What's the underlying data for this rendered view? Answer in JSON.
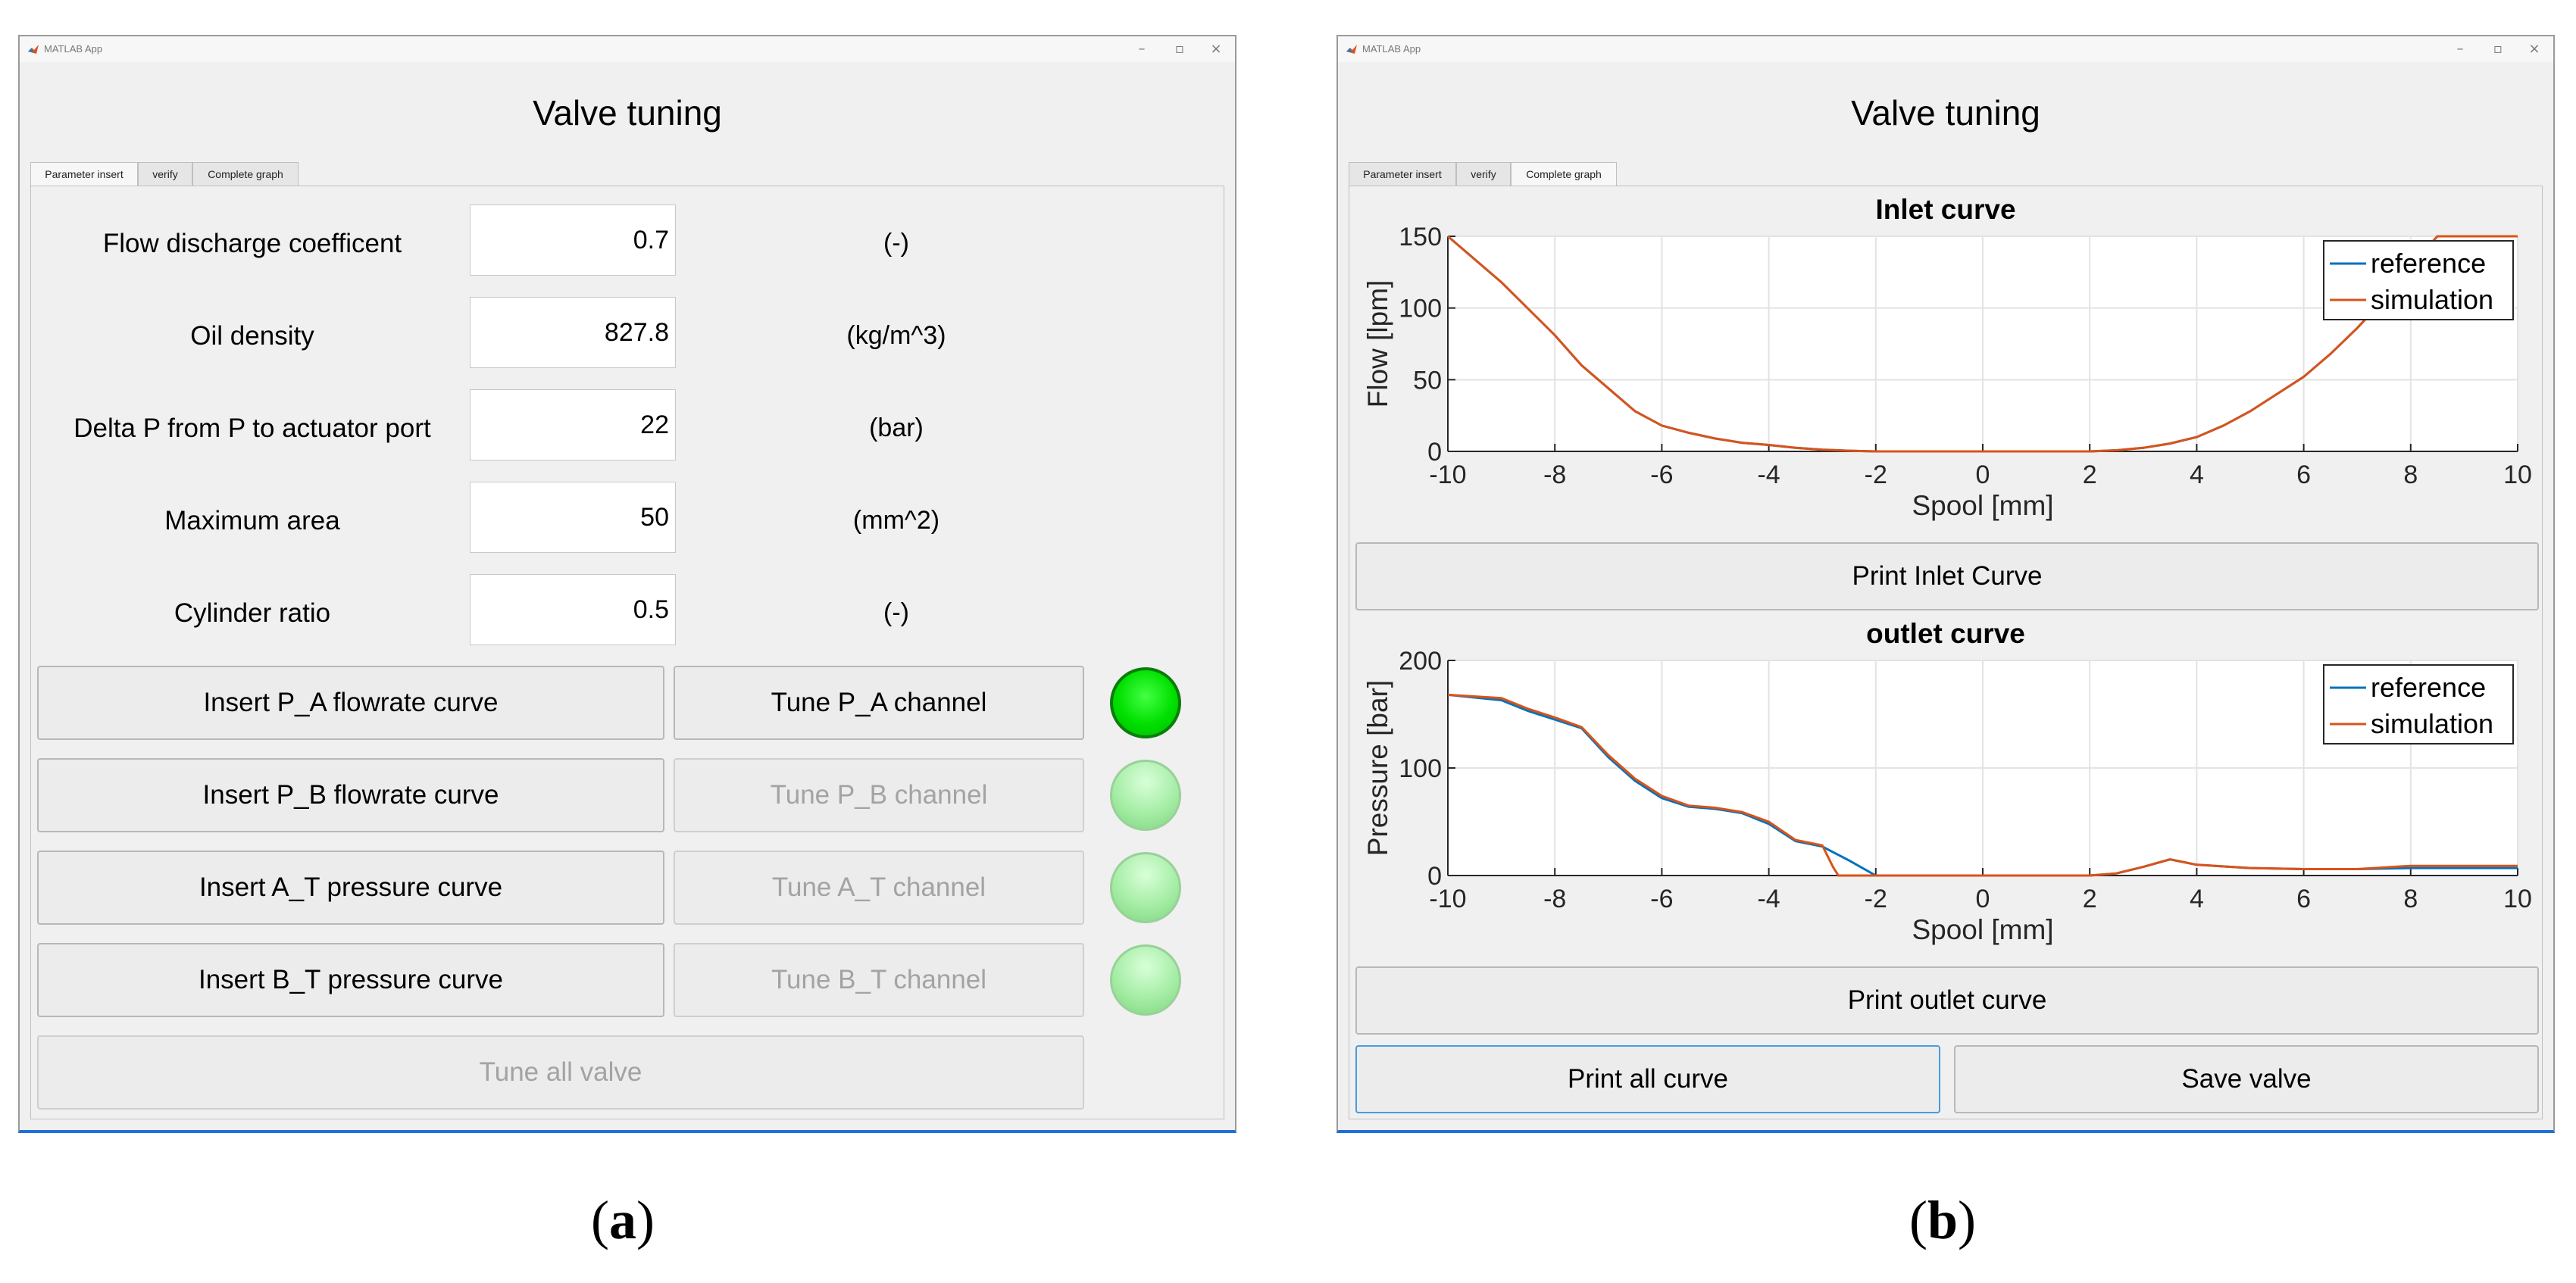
{
  "panels": [
    {
      "caption_open": "(",
      "caption_letter": "a",
      "caption_close": ")",
      "window_title": "MATLAB App",
      "heading": "Valve tuning",
      "tabs": [
        "Parameter insert",
        "verify",
        "Complete graph"
      ],
      "active_tab": 0,
      "params": [
        {
          "label": "Flow discharge coefficent",
          "value": "0.7",
          "unit": "(-)"
        },
        {
          "label": "Oil density",
          "value": "827.8",
          "unit": "(kg/m^3)"
        },
        {
          "label": "Delta P from P to actuator port",
          "value": "22",
          "unit": "(bar)"
        },
        {
          "label": "Maximum area",
          "value": "50",
          "unit": "(mm^2)"
        },
        {
          "label": "Cylinder ratio",
          "value": "0.5",
          "unit": "(-)"
        }
      ],
      "rows": [
        {
          "insert": "Insert P_A flowrate curve",
          "tune": "Tune P_A channel",
          "tune_enabled": true,
          "lamp": "on"
        },
        {
          "insert": "Insert P_B flowrate curve",
          "tune": "Tune P_B channel",
          "tune_enabled": false,
          "lamp": "off"
        },
        {
          "insert": "Insert A_T pressure curve",
          "tune": "Tune A_T channel",
          "tune_enabled": false,
          "lamp": "off"
        },
        {
          "insert": "Insert B_T pressure curve",
          "tune": "Tune B_T channel",
          "tune_enabled": false,
          "lamp": "off"
        }
      ],
      "tune_all": "Tune all valve",
      "colors": {
        "lamp_on": "#00e000",
        "lamp_off": "#a6eda6",
        "window_border": "#1e6fd9"
      }
    },
    {
      "caption_open": "(",
      "caption_letter": "b",
      "caption_close": ")",
      "window_title": "MATLAB App",
      "heading": "Valve tuning",
      "tabs": [
        "Parameter insert",
        "verify",
        "Complete graph"
      ],
      "active_tab": 2,
      "print_inlet": "Print Inlet Curve",
      "print_outlet": "Print outlet curve",
      "print_all": "Print all curve",
      "save_valve": "Save valve"
    }
  ],
  "chart_data": [
    {
      "type": "line",
      "title": "Inlet curve",
      "xlabel": "Spool [mm]",
      "ylabel": "Flow [lpm]",
      "xlim": [
        -10,
        10
      ],
      "ylim": [
        0,
        150
      ],
      "xticks": [
        -10,
        -8,
        -6,
        -4,
        -2,
        0,
        2,
        4,
        6,
        8,
        10
      ],
      "yticks": [
        0,
        50,
        100,
        150
      ],
      "grid": true,
      "legend": "top-right",
      "series": [
        {
          "name": "reference",
          "color": "#0072bd",
          "x": [
            -10,
            -9,
            -8,
            -7.5,
            -7,
            -6.5,
            -6,
            -5.5,
            -5,
            -4.5,
            -4,
            -3.5,
            -3,
            -2.5,
            -2,
            -1,
            0,
            1,
            2,
            2.5,
            3,
            3.5,
            4,
            4.5,
            5,
            5.5,
            6,
            6.5,
            7,
            7.5,
            8,
            8.5,
            9,
            10
          ],
          "y": [
            150,
            118,
            81,
            60,
            44,
            28,
            18,
            13,
            9,
            6,
            4.5,
            2.5,
            1.2,
            0.5,
            0,
            0,
            0,
            0,
            0,
            0.8,
            2.5,
            5.5,
            10,
            18,
            28,
            40,
            52,
            68,
            86,
            106,
            130,
            150,
            150,
            150
          ]
        },
        {
          "name": "simulation",
          "color": "#d95319",
          "x": [
            -10,
            -9,
            -8,
            -7.5,
            -7,
            -6.5,
            -6,
            -5.5,
            -5,
            -4.5,
            -4,
            -3.5,
            -3,
            -2.5,
            -2,
            -1,
            0,
            1,
            2,
            2.5,
            3,
            3.5,
            4,
            4.5,
            5,
            5.5,
            6,
            6.5,
            7,
            7.5,
            8,
            8.5,
            9,
            10
          ],
          "y": [
            150,
            118,
            81,
            60,
            44,
            28,
            18,
            13,
            9,
            6,
            4.5,
            2.5,
            1.2,
            0.5,
            0,
            0,
            0,
            0,
            0,
            0.8,
            2.5,
            5.5,
            10,
            18,
            28,
            40,
            52,
            68,
            86,
            106,
            130,
            150,
            150,
            150
          ]
        }
      ]
    },
    {
      "type": "line",
      "title": "outlet curve",
      "xlabel": "Spool [mm]",
      "ylabel": "Pressure [bar]",
      "xlim": [
        -10,
        10
      ],
      "ylim": [
        0,
        200
      ],
      "xticks": [
        -10,
        -8,
        -6,
        -4,
        -2,
        0,
        2,
        4,
        6,
        8,
        10
      ],
      "yticks": [
        0,
        100,
        200
      ],
      "grid": true,
      "legend": "top-right",
      "series": [
        {
          "name": "reference",
          "color": "#0072bd",
          "x": [
            -10,
            -9,
            -8.5,
            -8,
            -7.5,
            -7,
            -6.5,
            -6,
            -5.5,
            -5,
            -4.5,
            -4,
            -3.5,
            -3,
            -2.5,
            -2,
            -1,
            0,
            1,
            2,
            2.5,
            3,
            3.5,
            3.7,
            4,
            5,
            6,
            7,
            8,
            9,
            10
          ],
          "y": [
            168,
            163,
            153,
            145,
            137,
            110,
            88,
            72,
            64,
            62,
            58,
            48,
            32,
            27,
            14,
            0,
            0,
            0,
            0,
            0,
            2,
            8,
            15,
            13,
            10,
            7,
            6,
            6,
            7,
            7,
            7
          ]
        },
        {
          "name": "simulation",
          "color": "#d95319",
          "x": [
            -10,
            -9,
            -8.5,
            -8,
            -7.5,
            -7,
            -6.5,
            -6,
            -5.5,
            -5,
            -4.5,
            -4,
            -3.5,
            -3,
            -2.8,
            -2.7,
            -2,
            -1,
            0,
            1,
            2,
            2.5,
            3,
            3.5,
            3.7,
            4,
            5,
            6,
            7,
            8,
            9,
            10
          ],
          "y": [
            168,
            165,
            155,
            147,
            138,
            112,
            90,
            74,
            65,
            63,
            59,
            50,
            33,
            28,
            8,
            0,
            0,
            0,
            0,
            0,
            0,
            2,
            8,
            15,
            13,
            10,
            7,
            6,
            6,
            9,
            9,
            9
          ]
        }
      ]
    }
  ]
}
